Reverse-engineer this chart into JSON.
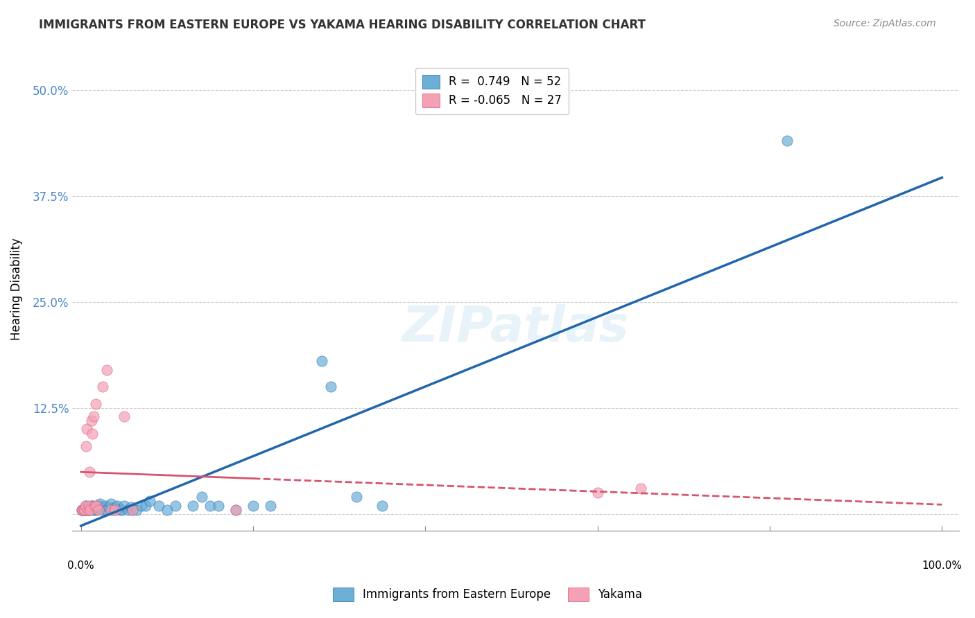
{
  "title": "IMMIGRANTS FROM EASTERN EUROPE VS YAKAMA HEARING DISABILITY CORRELATION CHART",
  "source": "Source: ZipAtlas.com",
  "ylabel": "Hearing Disability",
  "y_ticks": [
    0.0,
    0.125,
    0.25,
    0.375,
    0.5
  ],
  "y_tick_labels": [
    "",
    "12.5%",
    "25.0%",
    "37.5%",
    "50.0%"
  ],
  "x_ticks": [
    0.0,
    0.2,
    0.4,
    0.6,
    0.8,
    1.0
  ],
  "legend_label1": "Immigrants from Eastern Europe",
  "legend_label2": "Yakama",
  "r1": "0.749",
  "n1": "52",
  "r2": "-0.065",
  "n2": "27",
  "color_blue": "#6baed6",
  "color_pink": "#f4a0b5",
  "color_blue_line": "#2166ac",
  "color_pink_line": "#d6546e",
  "watermark": "ZIPatlas",
  "blue_points": [
    [
      0.001,
      0.005
    ],
    [
      0.002,
      0.005
    ],
    [
      0.003,
      0.005
    ],
    [
      0.004,
      0.005
    ],
    [
      0.005,
      0.005
    ],
    [
      0.006,
      0.01
    ],
    [
      0.007,
      0.005
    ],
    [
      0.008,
      0.005
    ],
    [
      0.009,
      0.005
    ],
    [
      0.01,
      0.005
    ],
    [
      0.011,
      0.008
    ],
    [
      0.012,
      0.01
    ],
    [
      0.013,
      0.01
    ],
    [
      0.015,
      0.005
    ],
    [
      0.016,
      0.005
    ],
    [
      0.017,
      0.008
    ],
    [
      0.018,
      0.005
    ],
    [
      0.02,
      0.01
    ],
    [
      0.022,
      0.012
    ],
    [
      0.025,
      0.005
    ],
    [
      0.028,
      0.01
    ],
    [
      0.03,
      0.005
    ],
    [
      0.032,
      0.008
    ],
    [
      0.035,
      0.012
    ],
    [
      0.038,
      0.005
    ],
    [
      0.04,
      0.008
    ],
    [
      0.042,
      0.01
    ],
    [
      0.045,
      0.005
    ],
    [
      0.048,
      0.005
    ],
    [
      0.05,
      0.01
    ],
    [
      0.055,
      0.005
    ],
    [
      0.058,
      0.008
    ],
    [
      0.06,
      0.005
    ],
    [
      0.065,
      0.005
    ],
    [
      0.07,
      0.01
    ],
    [
      0.075,
      0.01
    ],
    [
      0.08,
      0.015
    ],
    [
      0.09,
      0.01
    ],
    [
      0.1,
      0.005
    ],
    [
      0.11,
      0.01
    ],
    [
      0.13,
      0.01
    ],
    [
      0.14,
      0.02
    ],
    [
      0.15,
      0.01
    ],
    [
      0.16,
      0.01
    ],
    [
      0.18,
      0.005
    ],
    [
      0.2,
      0.01
    ],
    [
      0.22,
      0.01
    ],
    [
      0.28,
      0.18
    ],
    [
      0.32,
      0.02
    ],
    [
      0.35,
      0.01
    ],
    [
      0.82,
      0.44
    ],
    [
      0.29,
      0.15
    ]
  ],
  "pink_points": [
    [
      0.001,
      0.005
    ],
    [
      0.002,
      0.005
    ],
    [
      0.003,
      0.005
    ],
    [
      0.004,
      0.005
    ],
    [
      0.005,
      0.01
    ],
    [
      0.006,
      0.08
    ],
    [
      0.007,
      0.1
    ],
    [
      0.008,
      0.005
    ],
    [
      0.009,
      0.01
    ],
    [
      0.01,
      0.05
    ],
    [
      0.011,
      0.005
    ],
    [
      0.012,
      0.11
    ],
    [
      0.013,
      0.095
    ],
    [
      0.015,
      0.115
    ],
    [
      0.016,
      0.01
    ],
    [
      0.017,
      0.13
    ],
    [
      0.018,
      0.01
    ],
    [
      0.02,
      0.005
    ],
    [
      0.025,
      0.15
    ],
    [
      0.03,
      0.17
    ],
    [
      0.035,
      0.005
    ],
    [
      0.04,
      0.005
    ],
    [
      0.05,
      0.115
    ],
    [
      0.06,
      0.005
    ],
    [
      0.6,
      0.025
    ],
    [
      0.65,
      0.03
    ],
    [
      0.18,
      0.005
    ]
  ]
}
